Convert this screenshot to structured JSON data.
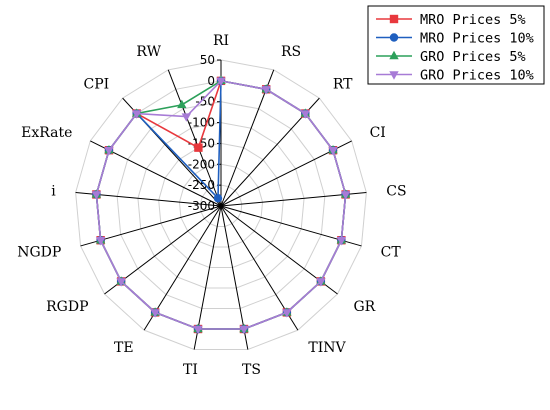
{
  "chart_data": {
    "type": "radar",
    "axes": [
      "RI",
      "RS",
      "RT",
      "CI",
      "CS",
      "CT",
      "GR",
      "TINV",
      "TS",
      "TI",
      "TE",
      "RGDP",
      "NGDP",
      "i",
      "ExRate",
      "CPI",
      "RW"
    ],
    "rlim": [
      -300,
      50
    ],
    "ticks": [
      50,
      0,
      -50,
      -100,
      -150,
      -200,
      -250,
      -300
    ],
    "grid": true,
    "legend_position": "top-right",
    "series": [
      {
        "name": "MRO Prices 5%",
        "color": "#e8383d",
        "marker": "square",
        "values": [
          0,
          0,
          0,
          0,
          0,
          0,
          0,
          0,
          0,
          0,
          0,
          0,
          0,
          0,
          0,
          0,
          -150
        ]
      },
      {
        "name": "MRO Prices 10%",
        "color": "#1f5fbf",
        "marker": "circle",
        "values": [
          0,
          0,
          0,
          0,
          0,
          0,
          0,
          0,
          0,
          0,
          0,
          0,
          0,
          0,
          0,
          0,
          -280
        ]
      },
      {
        "name": "GRO Prices 5%",
        "color": "#2ca05a",
        "marker": "triangle-up",
        "values": [
          0,
          0,
          0,
          0,
          0,
          0,
          0,
          0,
          0,
          0,
          0,
          0,
          0,
          0,
          0,
          0,
          -40
        ]
      },
      {
        "name": "GRO Prices 10%",
        "color": "#a77bd6",
        "marker": "triangle-down",
        "values": [
          0,
          0,
          0,
          0,
          0,
          0,
          0,
          0,
          0,
          0,
          0,
          0,
          0,
          0,
          0,
          0,
          -70
        ]
      }
    ]
  }
}
